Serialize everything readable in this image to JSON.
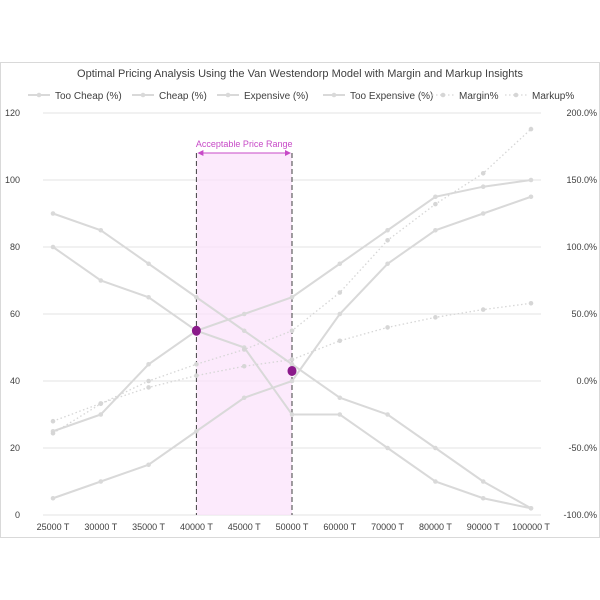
{
  "chart_data": {
    "type": "line",
    "title": "Optimal Pricing Analysis Using the Van Westendorp Model with Margin and Markup Insights",
    "categories": [
      "25000 T",
      "30000 T",
      "35000 T",
      "40000 T",
      "45000 T",
      "50000 T",
      "60000 T",
      "70000 T",
      "80000 T",
      "90000 T",
      "100000 T"
    ],
    "left_axis": {
      "min": 0,
      "max": 120,
      "ticks": [
        "0",
        "20",
        "40",
        "60",
        "80",
        "100",
        "120"
      ]
    },
    "right_axis": {
      "min": -100,
      "max": 200,
      "ticks": [
        "-100.0%",
        "-50.0%",
        "0.0%",
        "50.0%",
        "100.0%",
        "150.0%",
        "200.0%"
      ]
    },
    "grid": true,
    "legend_position": "top",
    "series": [
      {
        "name": "Too Cheap (%)",
        "axis": "left",
        "style": "solid",
        "color": "#d9d9d9",
        "values": [
          90,
          85,
          75,
          65,
          55,
          45,
          35,
          30,
          20,
          10,
          2
        ]
      },
      {
        "name": "Cheap (%)",
        "axis": "left",
        "style": "solid",
        "color": "#d9d9d9",
        "values": [
          80,
          70,
          65,
          55,
          50,
          30,
          30,
          20,
          10,
          5,
          2
        ]
      },
      {
        "name": "Expensive (%)",
        "axis": "left",
        "style": "solid",
        "color": "#d9d9d9",
        "values": [
          5,
          10,
          15,
          25,
          35,
          40,
          60,
          75,
          85,
          90,
          95
        ]
      },
      {
        "name": "Too Expensive (%)",
        "axis": "left",
        "style": "solid",
        "color": "#d9d9d9",
        "values": [
          25,
          30,
          45,
          55,
          60,
          65,
          75,
          85,
          95,
          98,
          100
        ]
      },
      {
        "name": "Margin%",
        "axis": "right",
        "style": "dotted",
        "color": "#d6d6d6",
        "values": [
          -30,
          -16.7,
          -4.8,
          4,
          11,
          16,
          30,
          40,
          47.5,
          53.3,
          58
        ]
      },
      {
        "name": "Markup%",
        "axis": "right",
        "style": "dotted",
        "color": "#d6d6d6",
        "values": [
          -39,
          -17,
          0,
          12.5,
          23.5,
          37.5,
          66,
          105,
          132,
          155,
          188
        ]
      }
    ],
    "highlight_points": [
      {
        "x_index": 3,
        "value": 55,
        "color": "#8b1a8b"
      },
      {
        "x_index": 5,
        "value": 43,
        "color": "#8b1a8b"
      }
    ],
    "acceptable_range": {
      "label": "Acceptable Price Range",
      "from_index": 3,
      "to_index": 5,
      "fill": "#fbe3fb",
      "label_color": "#c74ac7"
    }
  }
}
